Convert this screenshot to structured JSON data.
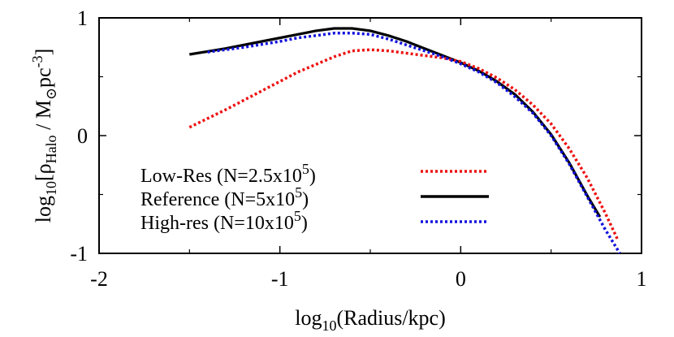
{
  "chart_data": {
    "type": "line",
    "x_axis": {
      "label_prefix": "log",
      "label_sub": "10",
      "label_rest": "(Radius/kpc)",
      "range": [
        -2,
        1
      ],
      "ticks": [
        {
          "value": -2,
          "label": "-2"
        },
        {
          "value": -1,
          "label": "-1"
        },
        {
          "value": 0,
          "label": "0"
        },
        {
          "value": 1,
          "label": "1"
        }
      ]
    },
    "y_axis": {
      "label_prefix": "log",
      "label_sub": "10",
      "label_rho_open": "[ρ",
      "label_rho_sub": "Halo",
      "label_mid": " / M",
      "label_sun": "⊙",
      "label_pc": "pc",
      "label_exp": "-3",
      "label_close": "]",
      "range": [
        -1,
        1
      ],
      "ticks": [
        {
          "value": -1,
          "label": "-1"
        },
        {
          "value": 0,
          "label": "0"
        },
        {
          "value": 1,
          "label": "1"
        }
      ]
    },
    "grid": false,
    "legend_position": "bottom-left",
    "series": [
      {
        "name_main": "Low-Res (N=2.5x10",
        "name_exp": "5",
        "name_close": ")",
        "color": "#ee1111",
        "style": "dotted",
        "x": [
          -1.5,
          -1.3,
          -1.1,
          -0.9,
          -0.7,
          -0.6,
          -0.5,
          -0.4,
          -0.3,
          -0.2,
          -0.1,
          0.0,
          0.1,
          0.2,
          0.3,
          0.4,
          0.5,
          0.6,
          0.7,
          0.8,
          0.87
        ],
        "y": [
          0.07,
          0.22,
          0.38,
          0.54,
          0.67,
          0.72,
          0.73,
          0.72,
          0.7,
          0.68,
          0.66,
          0.63,
          0.57,
          0.49,
          0.39,
          0.26,
          0.1,
          -0.11,
          -0.36,
          -0.66,
          -0.89
        ]
      },
      {
        "name_main": "Reference (N=5x10",
        "name_exp": "5",
        "name_close": ")",
        "color": "#000000",
        "style": "solid",
        "x": [
          -1.5,
          -1.3,
          -1.1,
          -0.9,
          -0.8,
          -0.7,
          -0.6,
          -0.5,
          -0.4,
          -0.3,
          -0.2,
          -0.1,
          0.0,
          0.1,
          0.2,
          0.3,
          0.4,
          0.5,
          0.6,
          0.7,
          0.77
        ],
        "y": [
          0.69,
          0.74,
          0.8,
          0.86,
          0.89,
          0.91,
          0.91,
          0.89,
          0.85,
          0.8,
          0.74,
          0.68,
          0.62,
          0.55,
          0.46,
          0.35,
          0.2,
          0.01,
          -0.23,
          -0.51,
          -0.69
        ]
      },
      {
        "name_main": "High-res  (N=10x10",
        "name_exp": "5",
        "name_close": ")",
        "color": "#1111dd",
        "style": "dotted",
        "x": [
          -1.4,
          -1.2,
          -1.0,
          -0.9,
          -0.8,
          -0.7,
          -0.6,
          -0.5,
          -0.4,
          -0.3,
          -0.2,
          -0.1,
          0.0,
          0.1,
          0.2,
          0.3,
          0.4,
          0.5,
          0.6,
          0.7,
          0.8,
          0.88
        ],
        "y": [
          0.71,
          0.75,
          0.8,
          0.83,
          0.85,
          0.87,
          0.87,
          0.86,
          0.82,
          0.77,
          0.72,
          0.67,
          0.61,
          0.54,
          0.45,
          0.33,
          0.19,
          0.0,
          -0.24,
          -0.52,
          -0.8,
          -1.0
        ]
      }
    ]
  }
}
